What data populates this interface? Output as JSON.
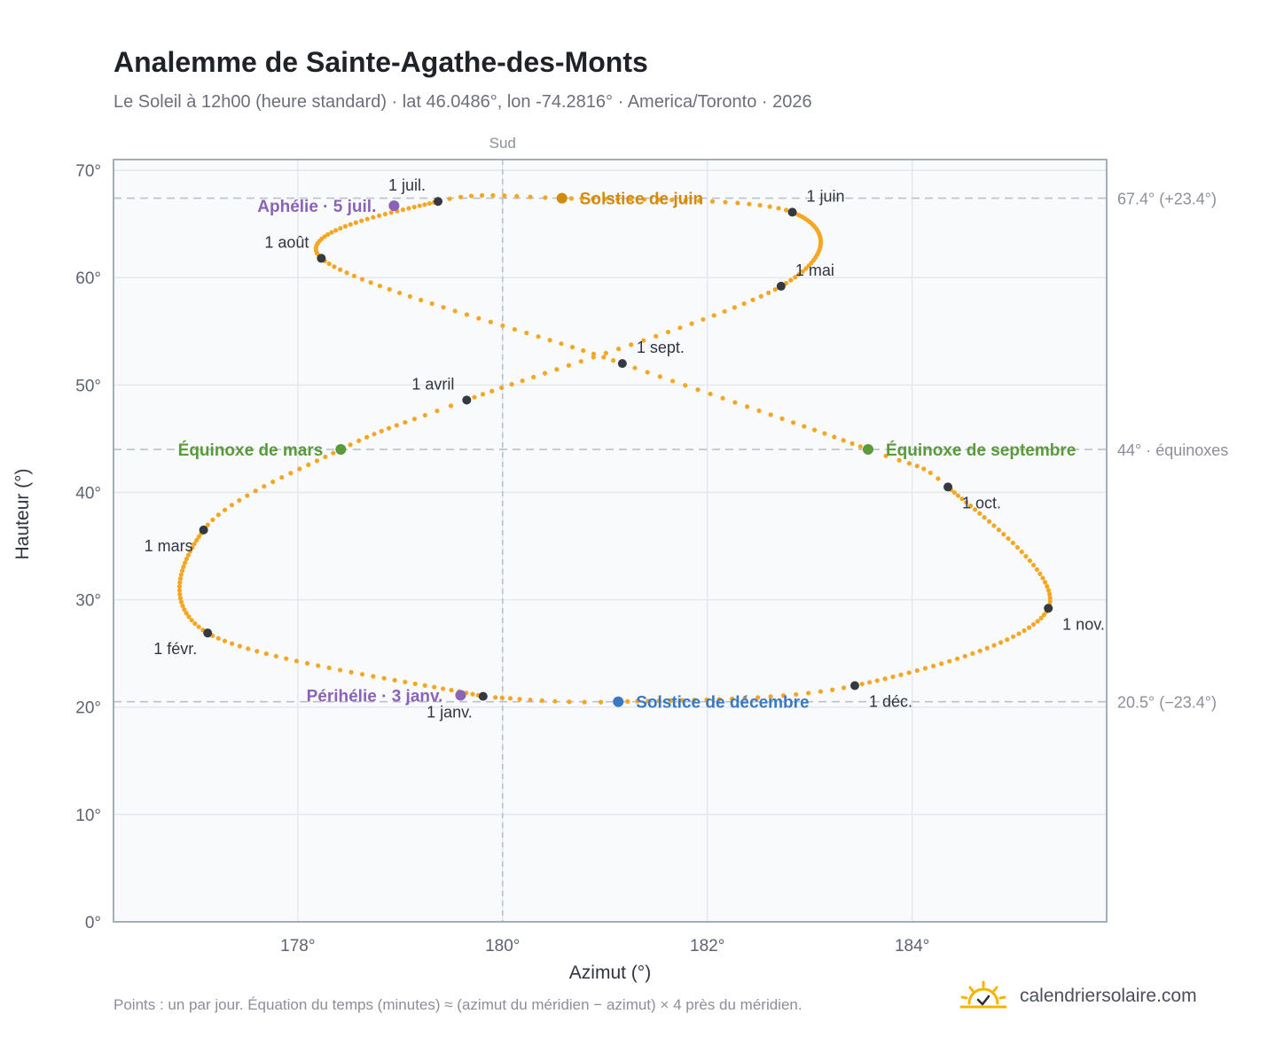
{
  "title": "Analemme de Sainte-Agathe-des-Monts",
  "subtitle": "Le Soleil à 12h00 (heure standard) · lat 46.0486°, lon -74.2816° · America/Toronto · 2026",
  "footnote": "Points : un par jour. Équation du temps (minutes) ≈ (azimut du méridien − azimut) × 4 près du méridien.",
  "brand": {
    "name": "calendriersolaire.com",
    "icon": "sun-check-icon",
    "color": "#f4b400"
  },
  "colors": {
    "curve": "#f5a623",
    "month_dot": "#343a40",
    "solstice_june": "#d18a0c",
    "solstice_december": "#3a78c2",
    "equinox": "#5a9a3a",
    "perihelion_aphelion": "#8a63b8",
    "grid": "#e3e8ee",
    "reference_line": "#b8c2cc",
    "plot_background": "#f8fafc",
    "plot_border": "#9aa5b3"
  },
  "chart_data": {
    "type": "scatter",
    "title": "Analemme de Sainte-Agathe-des-Monts",
    "xlabel": "Azimut (°)",
    "ylabel": "Hauteur (°)",
    "xlim": [
      176.2,
      185.9
    ],
    "ylim": [
      0,
      71
    ],
    "x_ticks": [
      {
        "value": 178,
        "label": "178°"
      },
      {
        "value": 180,
        "label": "180°"
      },
      {
        "value": 182,
        "label": "182°"
      },
      {
        "value": 184,
        "label": "184°"
      }
    ],
    "y_ticks": [
      {
        "value": 0,
        "label": "0°"
      },
      {
        "value": 10,
        "label": "10°"
      },
      {
        "value": 20,
        "label": "20°"
      },
      {
        "value": 30,
        "label": "30°"
      },
      {
        "value": 40,
        "label": "40°"
      },
      {
        "value": 50,
        "label": "50°"
      },
      {
        "value": 60,
        "label": "60°"
      },
      {
        "value": 70,
        "label": "70°"
      }
    ],
    "grid": true,
    "meridian": {
      "value": 180,
      "label": "Sud"
    },
    "reference_lines": [
      {
        "value": 67.4,
        "label": "67.4° (+23.4°)"
      },
      {
        "value": 44.0,
        "label": "44° · équinoxes"
      },
      {
        "value": 20.5,
        "label": "20.5° (−23.4°)"
      }
    ],
    "daily_points": [
      {
        "day": 1,
        "azimuth": 179.81,
        "altitude": 21.0
      },
      {
        "day": 32,
        "azimuth": 177.12,
        "altitude": 26.9
      },
      {
        "day": 60,
        "azimuth": 177.08,
        "altitude": 36.5
      },
      {
        "day": 78,
        "azimuth": 178.42,
        "altitude": 44.0
      },
      {
        "day": 91,
        "azimuth": 179.65,
        "altitude": 48.6
      },
      {
        "day": 121,
        "azimuth": 182.72,
        "altitude": 59.2
      },
      {
        "day": 152,
        "azimuth": 182.83,
        "altitude": 66.1
      },
      {
        "day": 172,
        "azimuth": 180.58,
        "altitude": 67.4
      },
      {
        "day": 182,
        "azimuth": 179.37,
        "altitude": 67.1
      },
      {
        "day": 213,
        "azimuth": 178.23,
        "altitude": 61.8
      },
      {
        "day": 244,
        "azimuth": 181.17,
        "altitude": 52.0
      },
      {
        "day": 266,
        "azimuth": 183.57,
        "altitude": 44.0
      },
      {
        "day": 274,
        "azimuth": 184.35,
        "altitude": 40.5
      },
      {
        "day": 305,
        "azimuth": 185.33,
        "altitude": 29.2
      },
      {
        "day": 335,
        "azimuth": 183.44,
        "altitude": 22.0
      },
      {
        "day": 355,
        "azimuth": 181.13,
        "altitude": 20.5
      },
      {
        "day": 365,
        "azimuth": 179.93,
        "altitude": 20.9
      }
    ],
    "month_markers": [
      {
        "label": "1 janv.",
        "azimuth": 179.81,
        "altitude": 21.0,
        "anchor": "below-left"
      },
      {
        "label": "1 févr.",
        "azimuth": 177.12,
        "altitude": 26.9,
        "anchor": "below-left"
      },
      {
        "label": "1 mars",
        "azimuth": 177.08,
        "altitude": 36.5,
        "anchor": "below-left"
      },
      {
        "label": "1 avril",
        "azimuth": 179.65,
        "altitude": 48.6,
        "anchor": "above-left"
      },
      {
        "label": "1 mai",
        "azimuth": 182.72,
        "altitude": 59.2,
        "anchor": "above-right"
      },
      {
        "label": "1 juin",
        "azimuth": 182.83,
        "altitude": 66.1,
        "anchor": "above-right"
      },
      {
        "label": "1 juil.",
        "azimuth": 179.37,
        "altitude": 67.1,
        "anchor": "above-left"
      },
      {
        "label": "1 août",
        "azimuth": 178.23,
        "altitude": 61.8,
        "anchor": "above-left"
      },
      {
        "label": "1 sept.",
        "azimuth": 181.17,
        "altitude": 52.0,
        "anchor": "above-right"
      },
      {
        "label": "1 oct.",
        "azimuth": 184.35,
        "altitude": 40.5,
        "anchor": "below-right"
      },
      {
        "label": "1 nov.",
        "azimuth": 185.33,
        "altitude": 29.2,
        "anchor": "below-right"
      },
      {
        "label": "1 déc.",
        "azimuth": 183.44,
        "altitude": 22.0,
        "anchor": "below-right"
      }
    ],
    "events": [
      {
        "label": "Solstice de juin",
        "azimuth": 180.58,
        "altitude": 67.4,
        "kind": "solstice_june",
        "anchor": "right"
      },
      {
        "label": "Solstice de décembre",
        "azimuth": 181.13,
        "altitude": 20.5,
        "kind": "solstice_december",
        "anchor": "right"
      },
      {
        "label": "Équinoxe de mars",
        "azimuth": 178.42,
        "altitude": 44.0,
        "kind": "equinox",
        "anchor": "left"
      },
      {
        "label": "Équinoxe de septembre",
        "azimuth": 183.57,
        "altitude": 44.0,
        "kind": "equinox",
        "anchor": "right"
      },
      {
        "label": "Aphélie · 5 juil.",
        "azimuth": 178.94,
        "altitude": 66.7,
        "kind": "perihelion_aphelion",
        "anchor": "left"
      },
      {
        "label": "Périhélie · 3 janv.",
        "azimuth": 179.59,
        "altitude": 21.1,
        "kind": "perihelion_aphelion",
        "anchor": "left"
      }
    ]
  }
}
